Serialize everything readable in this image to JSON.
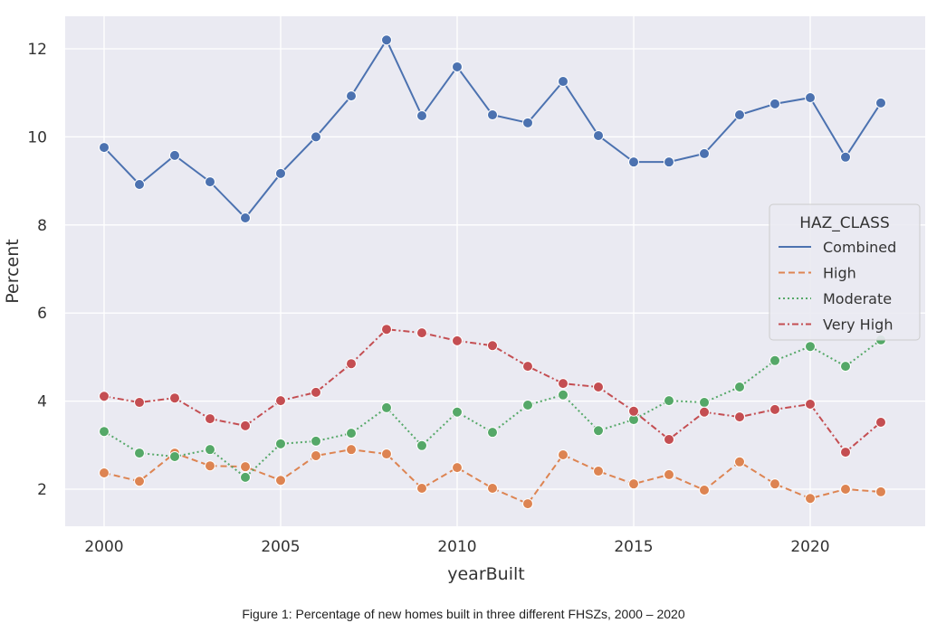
{
  "chart_data": {
    "type": "line",
    "xlabel": "yearBuilt",
    "ylabel": "Percent",
    "xlim": [
      1999.4,
      2022.7
    ],
    "ylim": [
      1.2,
      12.7
    ],
    "xticks": [
      2000,
      2005,
      2010,
      2015,
      2020
    ],
    "yticks": [
      2,
      4,
      6,
      8,
      10,
      12
    ],
    "grid": true,
    "legend": {
      "title": "HAZ_CLASS",
      "placement": "center-right"
    },
    "x": [
      2000,
      2001,
      2002,
      2003,
      2004,
      2005,
      2006,
      2007,
      2008,
      2009,
      2010,
      2011,
      2012,
      2013,
      2014,
      2015,
      2016,
      2017,
      2018,
      2019,
      2020,
      2021,
      2022
    ],
    "series": [
      {
        "name": "Combined",
        "color": "#4c72b0",
        "dash": "",
        "values": [
          9.76,
          8.92,
          9.58,
          8.98,
          8.16,
          9.17,
          10.0,
          10.93,
          12.2,
          10.48,
          11.59,
          10.5,
          10.32,
          11.26,
          10.03,
          9.43,
          9.43,
          9.62,
          10.5,
          10.75,
          10.89,
          9.54,
          10.77
        ]
      },
      {
        "name": "High",
        "color": "#dd8452",
        "dash": "7,4",
        "values": [
          2.37,
          2.18,
          2.82,
          2.53,
          2.51,
          2.2,
          2.76,
          2.9,
          2.8,
          2.02,
          2.49,
          2.02,
          1.67,
          2.78,
          2.41,
          2.12,
          2.33,
          1.98,
          2.62,
          2.12,
          1.79,
          2.0,
          1.94
        ]
      },
      {
        "name": "Moderate",
        "color": "#55a868",
        "dash": "2,3",
        "values": [
          3.31,
          2.82,
          2.74,
          2.9,
          2.27,
          3.03,
          3.09,
          3.27,
          3.85,
          2.99,
          3.75,
          3.29,
          3.91,
          4.14,
          3.33,
          3.58,
          4.01,
          3.97,
          4.32,
          4.92,
          5.24,
          4.79,
          5.39
        ]
      },
      {
        "name": "Very High",
        "color": "#c44e52",
        "dash": "7,3,2,3",
        "values": [
          4.11,
          3.97,
          4.07,
          3.6,
          3.44,
          4.01,
          4.2,
          4.85,
          5.63,
          5.55,
          5.37,
          5.26,
          4.79,
          4.4,
          4.32,
          3.77,
          3.13,
          3.75,
          3.64,
          3.81,
          3.93,
          2.84,
          3.52
        ]
      }
    ]
  },
  "caption": "Figure 1: Percentage of new homes built in three different FHSZs, 2000 – 2020"
}
